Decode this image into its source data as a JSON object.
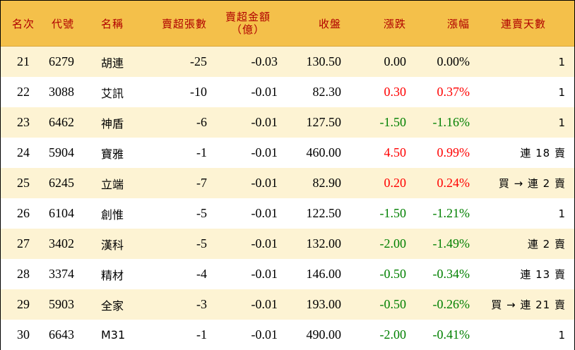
{
  "table": {
    "headers": {
      "rank": "名次",
      "code": "代號",
      "name": "名稱",
      "net_sell_shares": "賣超張數",
      "net_sell_amount_line1": "賣超金額",
      "net_sell_amount_line2": "（億）",
      "close": "收盤",
      "change": "漲跌",
      "change_pct": "漲幅",
      "consecutive_days": "連賣天數"
    },
    "colors": {
      "header_background": "#f4c04a",
      "header_text": "#b00000",
      "stripe_background": "#fdf3d3",
      "plain_background": "#ffffff",
      "up_color": "#ff0000",
      "down_color": "#008000"
    },
    "rows": [
      {
        "rank": "21",
        "code": "6279",
        "name": "胡連",
        "shares": "-25",
        "amount": "-0.03",
        "close": "130.50",
        "change": "0.00",
        "pct": "0.00%",
        "days": "1",
        "trend": "flat"
      },
      {
        "rank": "22",
        "code": "3088",
        "name": "艾訊",
        "shares": "-10",
        "amount": "-0.01",
        "close": "82.30",
        "change": "0.30",
        "pct": "0.37%",
        "days": "1",
        "trend": "up"
      },
      {
        "rank": "23",
        "code": "6462",
        "name": "神盾",
        "shares": "-6",
        "amount": "-0.01",
        "close": "127.50",
        "change": "-1.50",
        "pct": "-1.16%",
        "days": "1",
        "trend": "down"
      },
      {
        "rank": "24",
        "code": "5904",
        "name": "寶雅",
        "shares": "-1",
        "amount": "-0.01",
        "close": "460.00",
        "change": "4.50",
        "pct": "0.99%",
        "days": "連 18 賣",
        "trend": "up"
      },
      {
        "rank": "25",
        "code": "6245",
        "name": "立端",
        "shares": "-7",
        "amount": "-0.01",
        "close": "82.90",
        "change": "0.20",
        "pct": "0.24%",
        "days": "買 → 連 2 賣",
        "trend": "up"
      },
      {
        "rank": "26",
        "code": "6104",
        "name": "創惟",
        "shares": "-5",
        "amount": "-0.01",
        "close": "122.50",
        "change": "-1.50",
        "pct": "-1.21%",
        "days": "1",
        "trend": "down"
      },
      {
        "rank": "27",
        "code": "3402",
        "name": "漢科",
        "shares": "-5",
        "amount": "-0.01",
        "close": "132.00",
        "change": "-2.00",
        "pct": "-1.49%",
        "days": "連 2 賣",
        "trend": "down"
      },
      {
        "rank": "28",
        "code": "3374",
        "name": "精材",
        "shares": "-4",
        "amount": "-0.01",
        "close": "146.00",
        "change": "-0.50",
        "pct": "-0.34%",
        "days": "連 13 賣",
        "trend": "down"
      },
      {
        "rank": "29",
        "code": "5903",
        "name": "全家",
        "shares": "-3",
        "amount": "-0.01",
        "close": "193.00",
        "change": "-0.50",
        "pct": "-0.26%",
        "days": "買 → 連 21 賣",
        "trend": "down"
      },
      {
        "rank": "30",
        "code": "6643",
        "name": "M31",
        "shares": "-1",
        "amount": "-0.01",
        "close": "490.00",
        "change": "-2.00",
        "pct": "-0.41%",
        "days": "1",
        "trend": "down"
      }
    ]
  }
}
